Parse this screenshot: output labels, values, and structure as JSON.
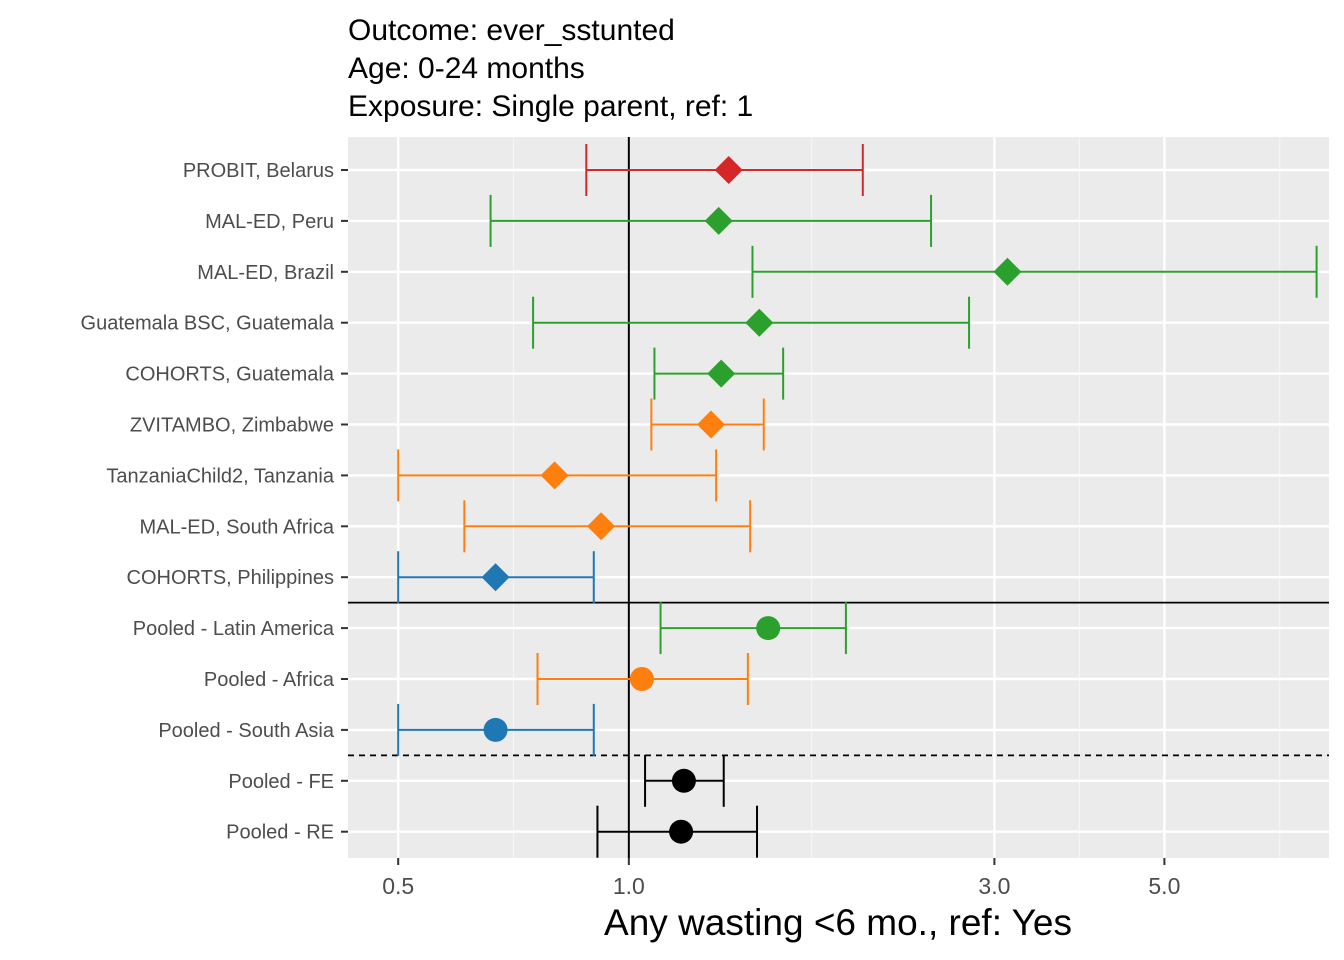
{
  "chart_data": {
    "type": "forest",
    "title_lines": [
      "Outcome: ever_sstunted",
      "Age: 0-24 months",
      "Exposure: Single parent, ref: 1"
    ],
    "xlabel": "Any wasting  <6 mo., ref: Yes",
    "ylabel": "",
    "x_scale": "log",
    "xlim": [
      0.43,
      8.2
    ],
    "x_ticks": [
      {
        "value": 0.5,
        "label": "0.5"
      },
      {
        "value": 1.0,
        "label": "1.0"
      },
      {
        "value": 3.0,
        "label": "3.0"
      },
      {
        "value": 5.0,
        "label": "5.0"
      }
    ],
    "x_minor_gridlines": [
      0.707,
      1.732,
      3.873,
      7.071
    ],
    "reference_line_x": 1.0,
    "grid": true,
    "colors": {
      "Europe": "#D62728",
      "Latin America": "#2CA02C",
      "Africa": "#FF7F0E",
      "South Asia": "#1F77B4",
      "Overall": "#000000"
    },
    "rows": [
      {
        "label": "PROBIT, Belarus",
        "est": 1.35,
        "lo": 0.88,
        "hi": 2.02,
        "region": "Europe",
        "shape": "diamond"
      },
      {
        "label": "MAL-ED, Peru",
        "est": 1.31,
        "lo": 0.66,
        "hi": 2.48,
        "region": "Latin America",
        "shape": "diamond"
      },
      {
        "label": "MAL-ED, Brazil",
        "est": 3.12,
        "lo": 1.45,
        "hi": 7.9,
        "region": "Latin America",
        "shape": "diamond"
      },
      {
        "label": "Guatemala BSC, Guatemala",
        "est": 1.48,
        "lo": 0.75,
        "hi": 2.78,
        "region": "Latin America",
        "shape": "diamond"
      },
      {
        "label": "COHORTS, Guatemala",
        "est": 1.32,
        "lo": 1.08,
        "hi": 1.59,
        "region": "Latin America",
        "shape": "diamond"
      },
      {
        "label": "ZVITAMBO, Zimbabwe",
        "est": 1.28,
        "lo": 1.07,
        "hi": 1.5,
        "region": "Africa",
        "shape": "diamond"
      },
      {
        "label": "TanzaniaChild2, Tanzania",
        "est": 0.8,
        "lo": 0.5,
        "hi": 1.3,
        "region": "Africa",
        "shape": "diamond"
      },
      {
        "label": "MAL-ED, South Africa",
        "est": 0.92,
        "lo": 0.61,
        "hi": 1.44,
        "region": "Africa",
        "shape": "diamond"
      },
      {
        "label": "COHORTS, Philippines",
        "est": 0.67,
        "lo": 0.5,
        "hi": 0.9,
        "region": "South Asia",
        "shape": "diamond"
      },
      {
        "label": "Pooled - Latin America",
        "est": 1.52,
        "lo": 1.1,
        "hi": 1.92,
        "region": "Latin America",
        "shape": "circle"
      },
      {
        "label": "Pooled - Africa",
        "est": 1.04,
        "lo": 0.76,
        "hi": 1.43,
        "region": "Africa",
        "shape": "circle"
      },
      {
        "label": "Pooled - South Asia",
        "est": 0.67,
        "lo": 0.5,
        "hi": 0.9,
        "region": "South Asia",
        "shape": "circle"
      },
      {
        "label": "Pooled - FE",
        "est": 1.18,
        "lo": 1.05,
        "hi": 1.33,
        "region": "Overall",
        "shape": "circle"
      },
      {
        "label": "Pooled - RE",
        "est": 1.17,
        "lo": 0.91,
        "hi": 1.47,
        "region": "Overall",
        "shape": "circle"
      }
    ],
    "separators": [
      {
        "after_row": "COHORTS, Philippines",
        "style": "solid"
      },
      {
        "after_row": "Pooled - South Asia",
        "style": "dashed"
      }
    ]
  }
}
